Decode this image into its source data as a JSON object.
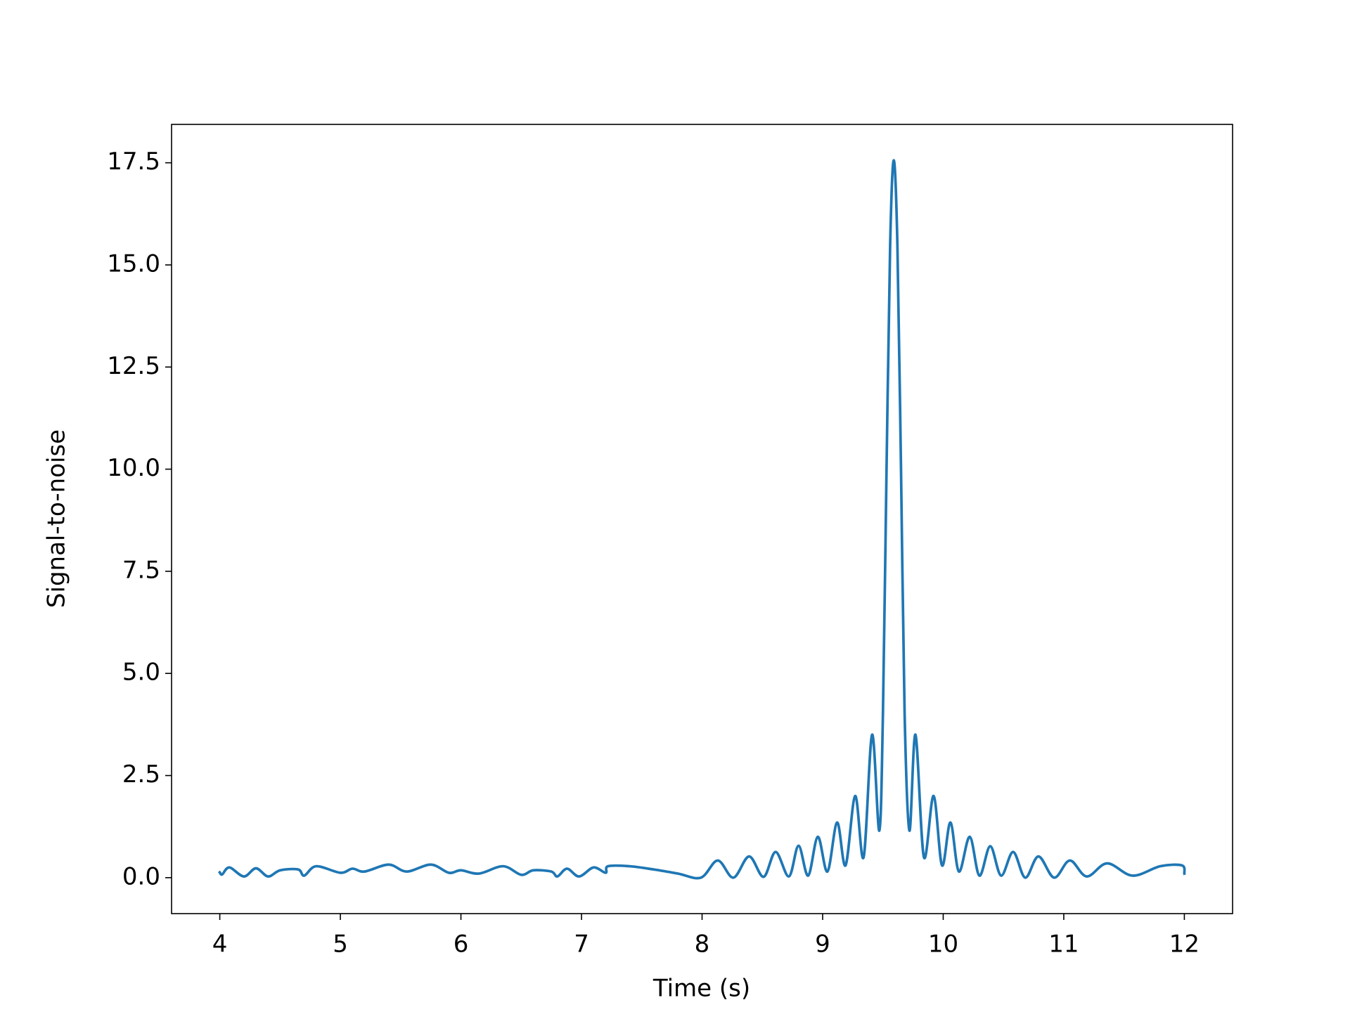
{
  "chart_data": {
    "type": "line",
    "x_label": "Time (s)",
    "y_label": "Signal-to-noise",
    "xlim": [
      3.6,
      12.4
    ],
    "ylim": [
      -0.88,
      18.44
    ],
    "xticks": [
      4,
      5,
      6,
      7,
      8,
      9,
      10,
      11,
      12
    ],
    "yticks": [
      {
        "value": 0,
        "label": "0.0"
      },
      2.5,
      {
        "value": 5,
        "label": "5.0"
      },
      7.5,
      {
        "value": 10,
        "label": "10.0"
      },
      12.5,
      {
        "value": 15,
        "label": "15.0"
      },
      17.5
    ],
    "grid": false,
    "series": [
      {
        "color": "#1f77b4",
        "x": [
          4.0,
          4.02,
          4.08,
          4.2,
          4.3,
          4.4,
          4.5,
          4.65,
          4.7,
          4.8,
          5.0,
          5.1,
          5.2,
          5.4,
          5.55,
          5.75,
          5.9,
          6.0,
          6.15,
          6.35,
          6.5,
          6.6,
          6.75,
          6.8,
          6.88,
          6.98,
          7.1,
          7.2,
          7.22,
          7.4,
          7.6,
          7.8,
          7.99,
          8.13,
          8.26,
          8.39,
          8.51,
          8.61,
          8.72,
          8.8,
          8.88,
          8.96,
          9.04,
          9.12,
          9.19,
          9.27,
          9.34,
          9.41,
          9.47,
          9.5,
          9.53,
          9.56,
          9.59,
          9.62,
          9.65,
          9.68,
          9.72,
          9.77,
          9.84,
          9.92,
          9.99,
          10.06,
          10.13,
          10.22,
          10.3,
          10.39,
          10.48,
          10.58,
          10.68,
          10.79,
          10.92,
          11.05,
          11.19,
          11.36,
          11.57,
          11.8,
          11.98,
          12.0
        ],
        "values": [
          0.13,
          0.08,
          0.25,
          0.03,
          0.23,
          0.03,
          0.18,
          0.2,
          0.05,
          0.28,
          0.12,
          0.22,
          0.15,
          0.32,
          0.15,
          0.32,
          0.12,
          0.18,
          0.1,
          0.28,
          0.07,
          0.18,
          0.15,
          0.03,
          0.22,
          0.03,
          0.25,
          0.12,
          0.28,
          0.28,
          0.2,
          0.1,
          0.0,
          0.42,
          0.0,
          0.52,
          0.02,
          0.63,
          0.03,
          0.78,
          0.05,
          1.0,
          0.15,
          1.35,
          0.3,
          2.0,
          0.5,
          3.5,
          1.15,
          4.0,
          10.0,
          15.5,
          17.56,
          15.5,
          10.0,
          4.0,
          1.15,
          3.5,
          0.5,
          2.0,
          0.3,
          1.35,
          0.15,
          1.0,
          0.05,
          0.77,
          0.05,
          0.63,
          0.0,
          0.52,
          0.0,
          0.42,
          0.03,
          0.35,
          0.05,
          0.28,
          0.3,
          0.1
        ]
      }
    ]
  }
}
